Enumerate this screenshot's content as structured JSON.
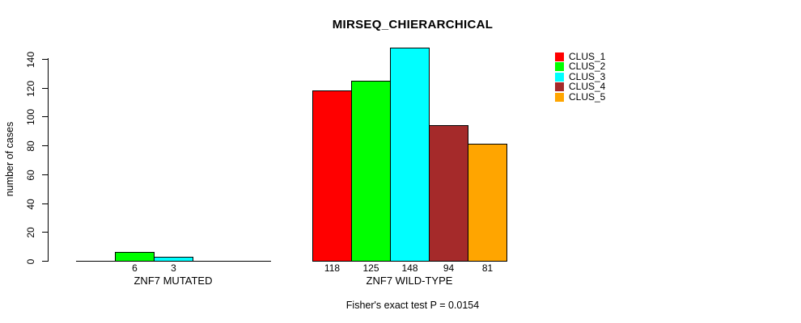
{
  "title": "MIRSEQ_CHIERARCHICAL",
  "chart_data": {
    "type": "bar",
    "title": "MIRSEQ_CHIERARCHICAL",
    "ylabel": "number of cases",
    "xlabel": "",
    "ylim": [
      0,
      148
    ],
    "yticks": [
      0,
      20,
      40,
      60,
      80,
      100,
      120,
      140
    ],
    "grid": false,
    "legend_position": "top-right",
    "series": [
      "CLUS_1",
      "CLUS_2",
      "CLUS_3",
      "CLUS_4",
      "CLUS_5"
    ],
    "colors": [
      "#ff0000",
      "#00ff00",
      "#00ffff",
      "#a52a2a",
      "#ffa500"
    ],
    "groups": [
      {
        "label": "ZNF7 MUTATED",
        "values": [
          0,
          6,
          3,
          0,
          0
        ],
        "bar_labels": [
          "",
          "6",
          "3",
          "",
          ""
        ]
      },
      {
        "label": "ZNF7 WILD-TYPE",
        "values": [
          118,
          125,
          148,
          94,
          81
        ],
        "bar_labels": [
          "118",
          "125",
          "148",
          "94",
          "81"
        ]
      }
    ],
    "annotation": "Fisher's exact test P = 0.0154"
  },
  "legend": {
    "items": [
      {
        "label": "CLUS_1",
        "color": "#ff0000"
      },
      {
        "label": "CLUS_2",
        "color": "#00ff00"
      },
      {
        "label": "CLUS_3",
        "color": "#00ffff"
      },
      {
        "label": "CLUS_4",
        "color": "#a52a2a"
      },
      {
        "label": "CLUS_5",
        "color": "#ffa500"
      }
    ]
  },
  "footer": {
    "note": "Fisher's exact test P = 0.0154"
  }
}
